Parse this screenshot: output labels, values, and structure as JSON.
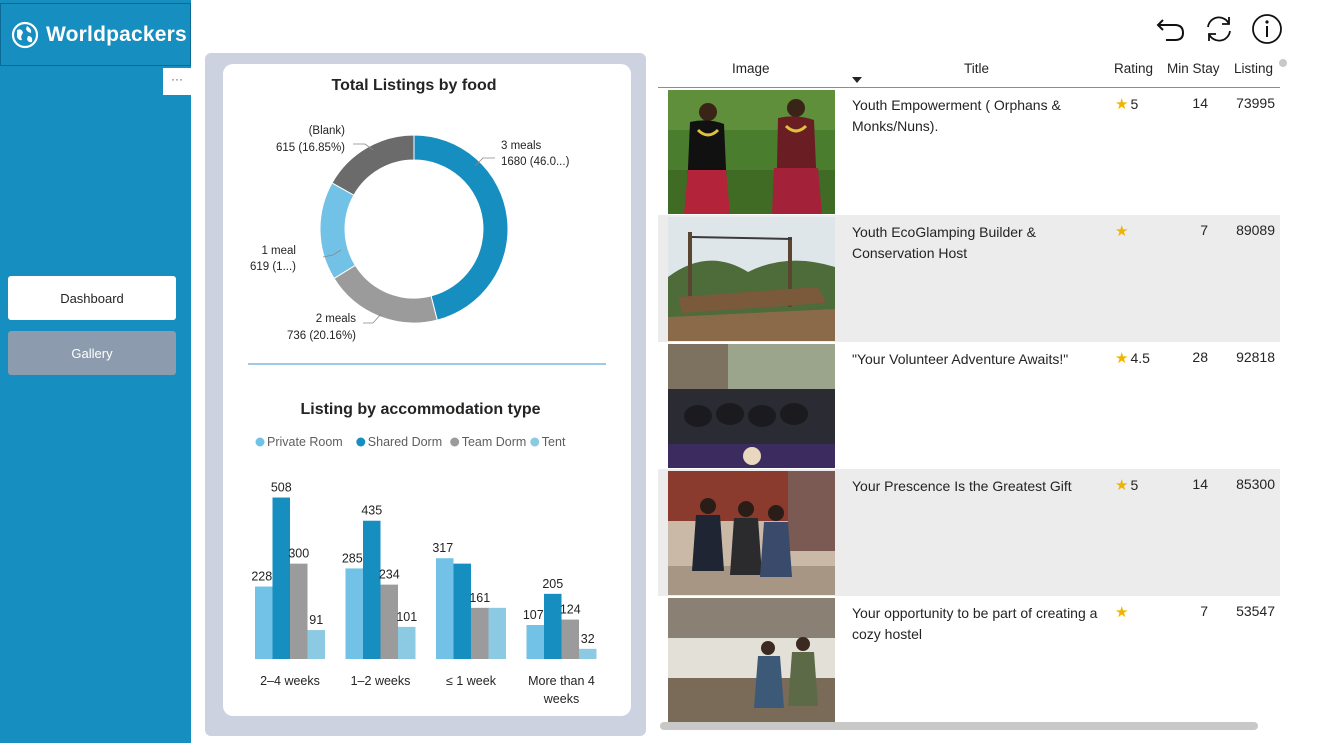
{
  "app": {
    "name": "Worldpackers",
    "colors": {
      "sidebar": "#168ec0",
      "panel": "#cdd2e1",
      "gallery_btn": "#8c9cae"
    }
  },
  "sidebar": {
    "more_label": "···",
    "nav": [
      {
        "label": "Dashboard",
        "active": true
      },
      {
        "label": "Gallery",
        "active": false
      }
    ]
  },
  "toolbar": {
    "icons": [
      "back-icon",
      "refresh-icon",
      "info-icon"
    ]
  },
  "chart_data": [
    {
      "type": "pie",
      "title": "Total Listings by food",
      "categories": [
        "3 meals",
        "2 meals",
        "1 meal",
        "(Blank)"
      ],
      "values": [
        1680,
        736,
        619,
        615
      ],
      "labels": [
        "3 meals",
        "1680 (46.0...)",
        "2 meals",
        "736 (20.16%)",
        "1 meal",
        "619 (1...)",
        "(Blank)",
        "615 (16.85%)"
      ],
      "colors": [
        "#168ec0",
        "#9b9b9b",
        "#72c1e6",
        "#6b6b6b"
      ]
    },
    {
      "type": "bar",
      "title": "Listing by accommodation type",
      "categories": [
        "2–4 weeks",
        "1–2 weeks",
        "≤ 1 week",
        "More than 4 weeks"
      ],
      "series": [
        {
          "name": "Private Room",
          "color": "#72c1e6",
          "values": [
            228,
            285,
            317,
            107
          ]
        },
        {
          "name": "Shared Dorm",
          "color": "#168ec0",
          "values": [
            508,
            435,
            300,
            205
          ]
        },
        {
          "name": "Team Dorm",
          "color": "#9b9b9b",
          "values": [
            300,
            234,
            161,
            124
          ]
        },
        {
          "name": "Tent",
          "color": "#8cc9e3",
          "values": [
            91,
            101,
            161,
            32
          ]
        }
      ],
      "data_labels": [
        [
          "228",
          "508",
          "300",
          "91"
        ],
        [
          "285",
          "435",
          "234",
          "101"
        ],
        [
          "317",
          "",
          "161",
          ""
        ],
        [
          "107",
          "205",
          "124",
          "32"
        ]
      ],
      "legend": "top",
      "grid": false
    }
  ],
  "table": {
    "headers": {
      "image": "Image",
      "title": "Title",
      "rating": "Rating",
      "min_stay": "Min Stay",
      "listing": "Listing"
    },
    "rows": [
      {
        "title": "Youth Empowerment ( Orphans & Monks/Nuns).",
        "rating": "5",
        "min_stay": "14",
        "listing": "73995",
        "image": "two-women-dancing"
      },
      {
        "title": "Youth EcoGlamping Builder & Conservation Host",
        "rating": "",
        "min_stay": "7",
        "listing": "89089",
        "image": "wooden-platform-forest"
      },
      {
        "title": "\"Your Volunteer Adventure Awaits!\"",
        "rating": "4.5",
        "min_stay": "28",
        "listing": "92818",
        "image": "helmets-on-table"
      },
      {
        "title": "Your Prescence Is the Greatest Gift",
        "rating": "5",
        "min_stay": "14",
        "listing": "85300",
        "image": "children-posing"
      },
      {
        "title": "Your opportunity to be part of creating a cozy hostel",
        "rating": "",
        "min_stay": "7",
        "listing": "53547",
        "image": "hostel-kitchen"
      }
    ]
  }
}
